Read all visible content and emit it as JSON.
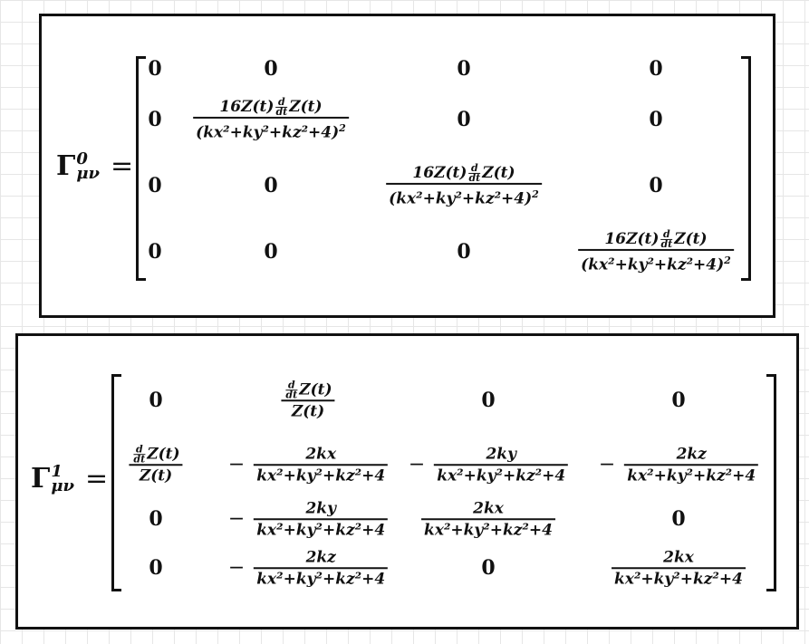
{
  "blocks": [
    {
      "symbol": "Γ",
      "superscript": "0",
      "subscript": "μν",
      "equals": "=",
      "rows": [
        [
          {
            "type": "text",
            "value": "0"
          },
          {
            "type": "text",
            "value": "0"
          },
          {
            "type": "text",
            "value": "0"
          },
          {
            "type": "text",
            "value": "0"
          }
        ],
        [
          {
            "type": "text",
            "value": "0"
          },
          {
            "type": "deriv_frac",
            "num_pre": "16Z(t)",
            "num_post": "Z(t)",
            "den": "(kx²+ky²+kz²+4)",
            "den_power": "2"
          },
          {
            "type": "text",
            "value": "0"
          },
          {
            "type": "text",
            "value": "0"
          }
        ],
        [
          {
            "type": "text",
            "value": "0"
          },
          {
            "type": "text",
            "value": "0"
          },
          {
            "type": "deriv_frac",
            "num_pre": "16Z(t)",
            "num_post": "Z(t)",
            "den": "(kx²+ky²+kz²+4)",
            "den_power": "2"
          },
          {
            "type": "text",
            "value": "0"
          }
        ],
        [
          {
            "type": "text",
            "value": "0"
          },
          {
            "type": "text",
            "value": "0"
          },
          {
            "type": "text",
            "value": "0"
          },
          {
            "type": "deriv_frac",
            "num_pre": "16Z(t)",
            "num_post": "Z(t)",
            "den": "(kx²+ky²+kz²+4)",
            "den_power": "2"
          }
        ]
      ]
    },
    {
      "symbol": "Γ",
      "superscript": "1",
      "subscript": "μν",
      "equals": "=",
      "rows": [
        [
          {
            "type": "text",
            "value": "0"
          },
          {
            "type": "deriv_frac",
            "num_pre": "",
            "num_post": "Z(t)",
            "den": "Z(t)",
            "den_power": ""
          },
          {
            "type": "text",
            "value": "0"
          },
          {
            "type": "text",
            "value": "0"
          }
        ],
        [
          {
            "type": "deriv_frac",
            "num_pre": "",
            "num_post": "Z(t)",
            "den": "Z(t)",
            "den_power": ""
          },
          {
            "type": "frac",
            "sign": "−",
            "num": "2kx",
            "den": "kx²+ky²+kz²+4"
          },
          {
            "type": "frac",
            "sign": "−",
            "num": "2ky",
            "den": "kx²+ky²+kz²+4"
          },
          {
            "type": "frac",
            "sign": "−",
            "num": "2kz",
            "den": "kx²+ky²+kz²+4"
          }
        ],
        [
          {
            "type": "text",
            "value": "0"
          },
          {
            "type": "frac",
            "sign": "−",
            "num": "2ky",
            "den": "kx²+ky²+kz²+4"
          },
          {
            "type": "frac",
            "sign": "",
            "num": "2kx",
            "den": "kx²+ky²+kz²+4"
          },
          {
            "type": "text",
            "value": "0"
          }
        ],
        [
          {
            "type": "text",
            "value": "0"
          },
          {
            "type": "frac",
            "sign": "−",
            "num": "2kz",
            "den": "kx²+ky²+kz²+4"
          },
          {
            "type": "text",
            "value": "0"
          },
          {
            "type": "frac",
            "sign": "",
            "num": "2kx",
            "den": "kx²+ky²+kz²+4"
          }
        ]
      ]
    }
  ],
  "derivative": {
    "top": "d",
    "bottom": "dt"
  }
}
